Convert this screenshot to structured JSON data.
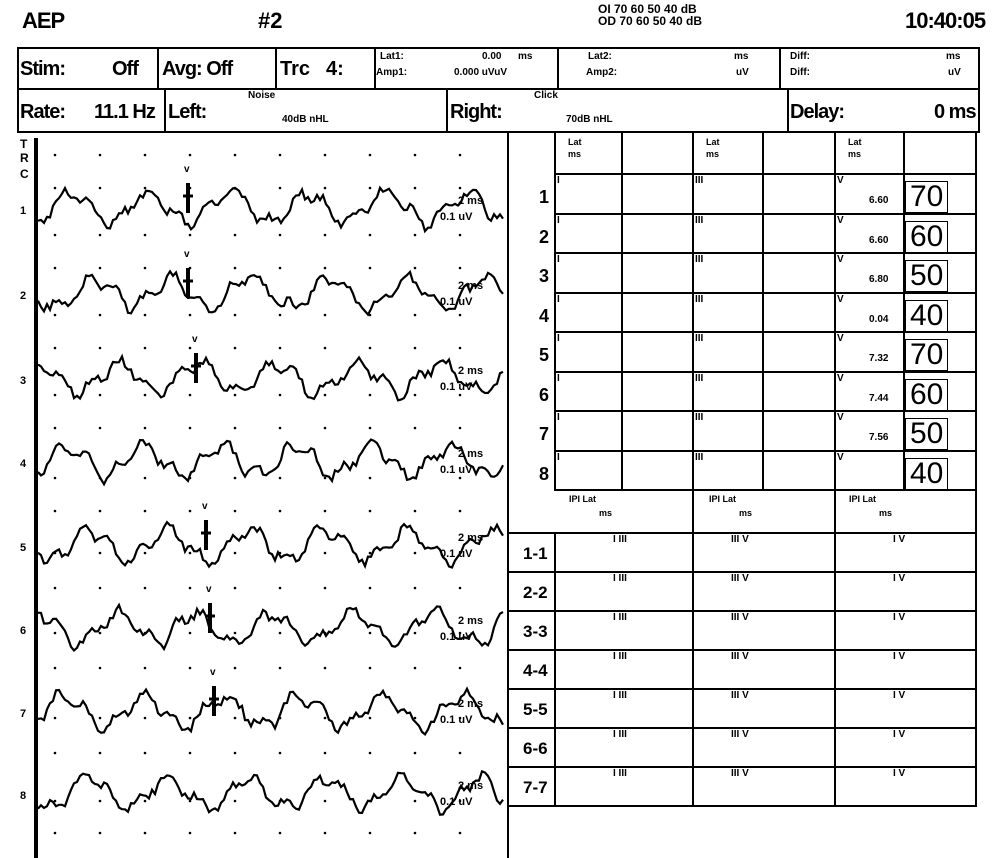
{
  "title": "AEP",
  "record_no": "#2",
  "intensities": {
    "oi": "OI 70 60 50 40 dB",
    "od": "OD 70 60 50 40 dB"
  },
  "time": "10:40:05",
  "row1": {
    "stim_label": "Stim:",
    "stim_value": "Off",
    "avg": "Avg: Off",
    "trc_label": "Trc",
    "trc_value": "4:",
    "lat1_label": "Lat1:",
    "lat1_value": "0.00",
    "lat1_unit": "ms",
    "amp1_label": "Amp1:",
    "amp1_value": "0.000 uVuV",
    "lat2_label": "Lat2:",
    "lat2_unit": "ms",
    "amp2_label": "Amp2:",
    "amp2_unit": "uV",
    "diff1_label": "Diff:",
    "diff1_unit": "ms",
    "diff2_label": "Diff:",
    "diff2_unit": "uV"
  },
  "row2": {
    "rate_label": "Rate:",
    "rate_value": "11.1 Hz",
    "left_label": "Left:",
    "noise_label": "Noise",
    "noise_value": "40dB  nHL",
    "right_label": "Right:",
    "click_label": "Click",
    "click_value": "70dB  nHL",
    "delay_label": "Delay:",
    "delay_value": "0 ms"
  },
  "side_label": [
    "T",
    "R",
    "C"
  ],
  "traces": [
    {
      "n": "1",
      "scale_time": "2 ms",
      "scale_amp": "0.1 uV",
      "marker": "v"
    },
    {
      "n": "2",
      "scale_time": "2 ms",
      "scale_amp": "0.1 uV",
      "marker": "v"
    },
    {
      "n": "3",
      "scale_time": "2 ms",
      "scale_amp": "0.1 uV",
      "marker": "v"
    },
    {
      "n": "4",
      "scale_time": "2 ms",
      "scale_amp": "0.1 uV",
      "marker": ""
    },
    {
      "n": "5",
      "scale_time": "2 ms",
      "scale_amp": "0.1 uV",
      "marker": "v"
    },
    {
      "n": "6",
      "scale_time": "2 ms",
      "scale_amp": "0.1 uV",
      "marker": "v"
    },
    {
      "n": "7",
      "scale_time": "2 ms",
      "scale_amp": "0.1 uV",
      "marker": "v"
    },
    {
      "n": "8",
      "scale_time": "2 ms",
      "scale_amp": "0.1 uV",
      "marker": ""
    }
  ],
  "lat_table": {
    "header_lat": "Lat",
    "header_ms": "ms",
    "wave_labels": [
      "I",
      "III",
      "V"
    ],
    "rows": [
      {
        "n": "1",
        "v": "6.60",
        "db": "70"
      },
      {
        "n": "2",
        "v": "6.60",
        "db": "60"
      },
      {
        "n": "3",
        "v": "6.80",
        "db": "50"
      },
      {
        "n": "4",
        "v": "0.04",
        "db": "40"
      },
      {
        "n": "5",
        "v": "7.32",
        "db": "70"
      },
      {
        "n": "6",
        "v": "7.44",
        "db": "60"
      },
      {
        "n": "7",
        "v": "7.56",
        "db": "50"
      },
      {
        "n": "8",
        "v": "",
        "db": "40"
      }
    ]
  },
  "ipi_table": {
    "header_ipi": "IPI Lat",
    "header_ms": "ms",
    "col_labels": [
      "I III",
      "III V",
      "I V"
    ],
    "rows": [
      "1-1",
      "2-2",
      "3-3",
      "4-4",
      "5-5",
      "6-6",
      "7-7"
    ]
  }
}
